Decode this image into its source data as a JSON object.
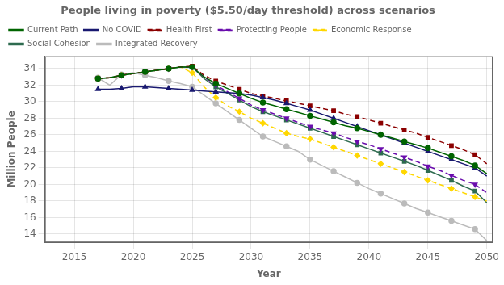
{
  "chart_data": {
    "type": "line",
    "title": "People living in poverty ($5.50/day threshold) across scenarios",
    "x_label": "Year",
    "y_label": "Million People",
    "x": [
      2017,
      2018,
      2019,
      2020,
      2021,
      2022,
      2023,
      2024,
      2025,
      2026,
      2027,
      2028,
      2029,
      2030,
      2031,
      2032,
      2033,
      2034,
      2035,
      2036,
      2037,
      2038,
      2039,
      2040,
      2041,
      2042,
      2043,
      2044,
      2045,
      2046,
      2047,
      2048,
      2049,
      2050
    ],
    "xlim": [
      2012.5,
      2050.5
    ],
    "xticks": [
      2015,
      2020,
      2025,
      2030,
      2035,
      2040,
      2045,
      2050
    ],
    "ylim": [
      13.0,
      35.5
    ],
    "yticks": [
      14,
      16,
      18,
      20,
      22,
      24,
      26,
      28,
      30,
      32,
      34
    ],
    "grid": true,
    "legend": "upper left",
    "series": [
      {
        "name": "Current Path",
        "color": "#006400",
        "line_style": "solid",
        "marker": "circle",
        "values": [
          32.8,
          32.9,
          33.2,
          33.4,
          33.6,
          33.8,
          34.0,
          34.2,
          34.2,
          33.0,
          32.2,
          31.6,
          31.0,
          30.4,
          29.9,
          29.5,
          29.1,
          28.7,
          28.3,
          27.9,
          27.5,
          27.1,
          26.8,
          26.4,
          26.0,
          25.6,
          25.2,
          24.8,
          24.4,
          23.9,
          23.4,
          22.9,
          22.3,
          21.3
        ]
      },
      {
        "name": "No COVID",
        "color": "#191970",
        "line_style": "solid",
        "marker": "triangle-up",
        "values": [
          31.5,
          31.5,
          31.6,
          31.8,
          31.8,
          31.7,
          31.6,
          31.5,
          31.4,
          31.3,
          31.2,
          31.1,
          31.0,
          30.8,
          30.5,
          30.2,
          29.8,
          29.4,
          29.0,
          28.5,
          28.0,
          27.5,
          27.0,
          26.5,
          26.0,
          25.5,
          25.0,
          24.5,
          24.0,
          23.5,
          23.0,
          22.5,
          22.0,
          21.0
        ]
      },
      {
        "name": "Health First",
        "color": "#8B0000",
        "line_style": "dashed",
        "marker": "square",
        "values": [
          32.8,
          32.9,
          33.2,
          33.4,
          33.6,
          33.8,
          34.0,
          34.2,
          34.3,
          33.2,
          32.5,
          32.0,
          31.5,
          31.0,
          30.7,
          30.4,
          30.1,
          29.8,
          29.5,
          29.2,
          28.9,
          28.5,
          28.2,
          27.8,
          27.4,
          27.0,
          26.6,
          26.2,
          25.7,
          25.2,
          24.7,
          24.2,
          23.6,
          22.5
        ]
      },
      {
        "name": "Protecting People",
        "color": "#6A0DAD",
        "line_style": "dashed",
        "marker": "triangle-down",
        "values": [
          32.8,
          32.9,
          33.2,
          33.4,
          33.6,
          33.8,
          34.0,
          34.2,
          34.2,
          33.0,
          32.0,
          31.2,
          30.4,
          29.6,
          29.0,
          28.5,
          28.0,
          27.5,
          27.0,
          26.6,
          26.2,
          25.7,
          25.2,
          24.8,
          24.3,
          23.8,
          23.3,
          22.8,
          22.2,
          21.7,
          21.1,
          20.5,
          20.0,
          19.0
        ]
      },
      {
        "name": "Economic Response",
        "color": "#FFD700",
        "line_style": "dashed",
        "marker": "diamond",
        "values": [
          32.8,
          32.9,
          33.2,
          33.4,
          33.6,
          33.8,
          34.0,
          34.2,
          33.5,
          31.8,
          30.5,
          29.5,
          28.8,
          28.0,
          27.4,
          26.8,
          26.2,
          25.8,
          25.5,
          25.0,
          24.5,
          24.0,
          23.5,
          23.0,
          22.5,
          22.0,
          21.5,
          21.0,
          20.5,
          20.0,
          19.5,
          19.0,
          18.5,
          18.0
        ]
      },
      {
        "name": "Social Cohesion",
        "color": "#2E6B4F",
        "line_style": "solid",
        "marker": "square",
        "values": [
          32.8,
          32.9,
          33.2,
          33.4,
          33.6,
          33.8,
          34.0,
          34.2,
          34.2,
          32.8,
          31.8,
          31.0,
          30.2,
          29.4,
          28.8,
          28.3,
          27.8,
          27.3,
          26.8,
          26.3,
          25.8,
          25.3,
          24.8,
          24.3,
          23.8,
          23.3,
          22.8,
          22.3,
          21.7,
          21.1,
          20.5,
          19.8,
          19.2,
          17.8
        ]
      },
      {
        "name": "Integrated Recovery",
        "color": "#BBBBBB",
        "line_style": "solid",
        "marker": "circle",
        "values": [
          32.9,
          32.0,
          33.3,
          33.5,
          33.2,
          32.9,
          32.5,
          32.2,
          31.8,
          30.8,
          29.8,
          28.8,
          27.8,
          26.8,
          25.8,
          25.2,
          24.6,
          24.0,
          23.0,
          22.3,
          21.6,
          20.9,
          20.2,
          19.5,
          18.9,
          18.3,
          17.7,
          17.1,
          16.6,
          16.1,
          15.6,
          15.1,
          14.6,
          13.2
        ]
      }
    ]
  }
}
